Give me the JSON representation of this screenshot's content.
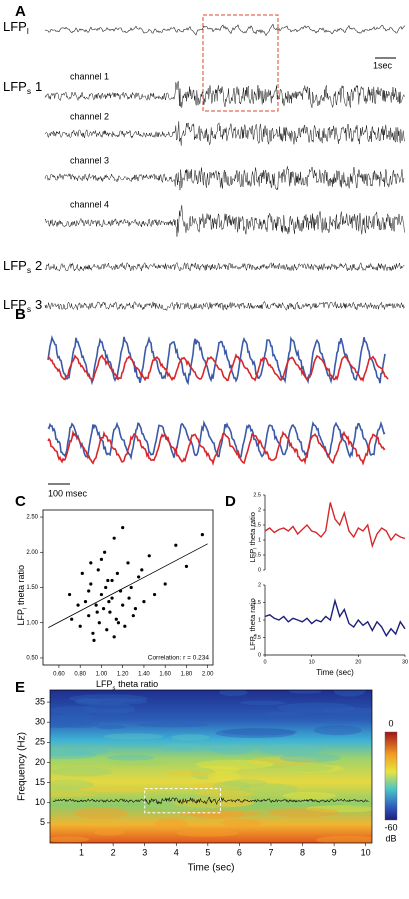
{
  "panel_labels": [
    "A",
    "B",
    "C",
    "D",
    "E"
  ],
  "panel_a": {
    "lfp_l": {
      "main": "LFP",
      "sub": "l"
    },
    "lfp_s1": {
      "main": "LFP",
      "sub": "s",
      "suffix": "1"
    },
    "lfp_s2": {
      "main": "LFP",
      "sub": "s",
      "suffix": "2"
    },
    "lfp_s3": {
      "main": "LFP",
      "sub": "s",
      "suffix": "3"
    },
    "channels": [
      "channel 1",
      "channel 2",
      "channel 3",
      "channel 4"
    ],
    "scale_bar": "1sec"
  },
  "panel_b": {
    "scale_bar": "100 msec"
  },
  "chart_data": [
    {
      "type": "scatter",
      "xlabel": {
        "main": "LFP",
        "sub": "s",
        "rest": "theta ratio"
      },
      "ylabel": {
        "main": "LFP",
        "sub": "l",
        "rest": "theta ratio"
      },
      "annotation": "Correlation: r = 0.234",
      "x": [
        0.72,
        0.8,
        0.85,
        0.88,
        0.9,
        0.92,
        0.95,
        0.97,
        0.98,
        1.0,
        1.02,
        1.03,
        1.05,
        1.06,
        1.08,
        1.1,
        1.12,
        1.14,
        1.15,
        1.18,
        1.2,
        1.22,
        1.25,
        1.28,
        1.3,
        1.35,
        1.4,
        1.45,
        1.5,
        1.6,
        1.7,
        1.8,
        1.95,
        0.7,
        0.82,
        0.93,
        1.0,
        1.07,
        1.12,
        1.2,
        1.32,
        0.88,
        0.96,
        1.04,
        1.16,
        1.26,
        1.38,
        0.78,
        0.9,
        1.1
      ],
      "values": [
        1.05,
        0.95,
        1.3,
        1.1,
        1.55,
        0.85,
        1.25,
        1.75,
        1.0,
        1.4,
        1.2,
        2.0,
        0.9,
        1.6,
        1.15,
        1.35,
        2.2,
        1.05,
        1.7,
        1.45,
        1.25,
        0.95,
        1.85,
        1.5,
        1.1,
        1.65,
        1.3,
        1.95,
        1.4,
        1.55,
        2.1,
        1.8,
        2.25,
        1.4,
        1.7,
        0.75,
        1.9,
        1.3,
        0.8,
        2.35,
        1.2,
        1.45,
        1.15,
        1.5,
        1.0,
        1.35,
        1.75,
        1.25,
        1.85,
        1.6
      ],
      "color": "#000000",
      "fit": {
        "x": [
          0.5,
          2.0
        ],
        "y": [
          0.93,
          2.12
        ]
      },
      "xlim": [
        0.45,
        2.05
      ],
      "ylim": [
        0.4,
        2.6
      ],
      "xticks": [
        {
          "value": 0.6,
          "label": "0.60"
        },
        {
          "value": 0.8,
          "label": "0.80"
        },
        {
          "value": 1.0,
          "label": "1.00"
        },
        {
          "value": 1.2,
          "label": "1.20"
        },
        {
          "value": 1.4,
          "label": "1.40"
        },
        {
          "value": 1.6,
          "label": "1.60"
        },
        {
          "value": 1.8,
          "label": "1.80"
        },
        {
          "value": 2.0,
          "label": "2.00"
        }
      ],
      "yticks": [
        {
          "value": 0.5,
          "label": "0.50"
        },
        {
          "value": 1.0,
          "label": "1.00"
        },
        {
          "value": 1.5,
          "label": "1.50"
        },
        {
          "value": 2.0,
          "label": "2.00"
        },
        {
          "value": 2.5,
          "label": "2.50"
        }
      ]
    },
    {
      "type": "line",
      "ylabel": {
        "main": "LFP",
        "sub": "l",
        "rest": "theta ratio"
      },
      "x": [
        0,
        1,
        2,
        3,
        4,
        5,
        6,
        7,
        8,
        9,
        10,
        11,
        12,
        13,
        14,
        15,
        16,
        17,
        18,
        19,
        20,
        21,
        22,
        23,
        24,
        25,
        26,
        27,
        28,
        29,
        30
      ],
      "series": [
        {
          "color": "#d6282b",
          "values": [
            1.3,
            1.4,
            1.25,
            1.35,
            1.4,
            1.3,
            1.45,
            1.2,
            1.35,
            1.5,
            1.3,
            1.25,
            1.1,
            1.3,
            2.25,
            1.7,
            1.5,
            1.9,
            1.3,
            1.1,
            1.4,
            1.3,
            1.5,
            0.8,
            1.2,
            1.4,
            1.3,
            1.0,
            1.2,
            1.1,
            1.05
          ]
        }
      ],
      "xlim": [
        0,
        30
      ],
      "ylim": [
        0,
        2.5
      ],
      "yticks": [
        0,
        0.5,
        1,
        1.5,
        2,
        2.5
      ]
    },
    {
      "type": "line",
      "ylabel": {
        "main": "LFP",
        "sub": "s",
        "rest": "theta ratio"
      },
      "xlabel": "Time (sec)",
      "x": [
        0,
        1,
        2,
        3,
        4,
        5,
        6,
        7,
        8,
        9,
        10,
        11,
        12,
        13,
        14,
        15,
        16,
        17,
        18,
        19,
        20,
        21,
        22,
        23,
        24,
        25,
        26,
        27,
        28,
        29,
        30
      ],
      "series": [
        {
          "color": "#1c1f7a",
          "values": [
            1.1,
            1.15,
            1.05,
            1.0,
            1.1,
            0.95,
            1.05,
            1.0,
            0.95,
            1.05,
            0.9,
            1.0,
            0.95,
            1.1,
            1.0,
            1.55,
            1.1,
            1.3,
            0.9,
            0.8,
            1.0,
            0.85,
            0.95,
            0.7,
            0.95,
            0.8,
            0.55,
            0.75,
            0.6,
            0.95,
            0.75
          ]
        }
      ],
      "xlim": [
        0,
        30
      ],
      "ylim": [
        0,
        2
      ],
      "yticks": [
        0,
        0.5,
        1,
        1.5,
        2
      ],
      "xticks": [
        0,
        10,
        20,
        30
      ]
    },
    {
      "type": "heatmap",
      "xlabel": "Time (sec)",
      "ylabel": "Frequency (Hz)",
      "xlim": [
        0,
        10.2
      ],
      "ylim": [
        0,
        38
      ],
      "xticks": [
        1,
        2,
        3,
        4,
        5,
        6,
        7,
        8,
        9,
        10
      ],
      "yticks": [
        5,
        10,
        15,
        20,
        25,
        30,
        35
      ],
      "clim": [
        -60,
        0
      ],
      "cticks": [
        0,
        -60
      ],
      "cunit": "dB"
    }
  ]
}
